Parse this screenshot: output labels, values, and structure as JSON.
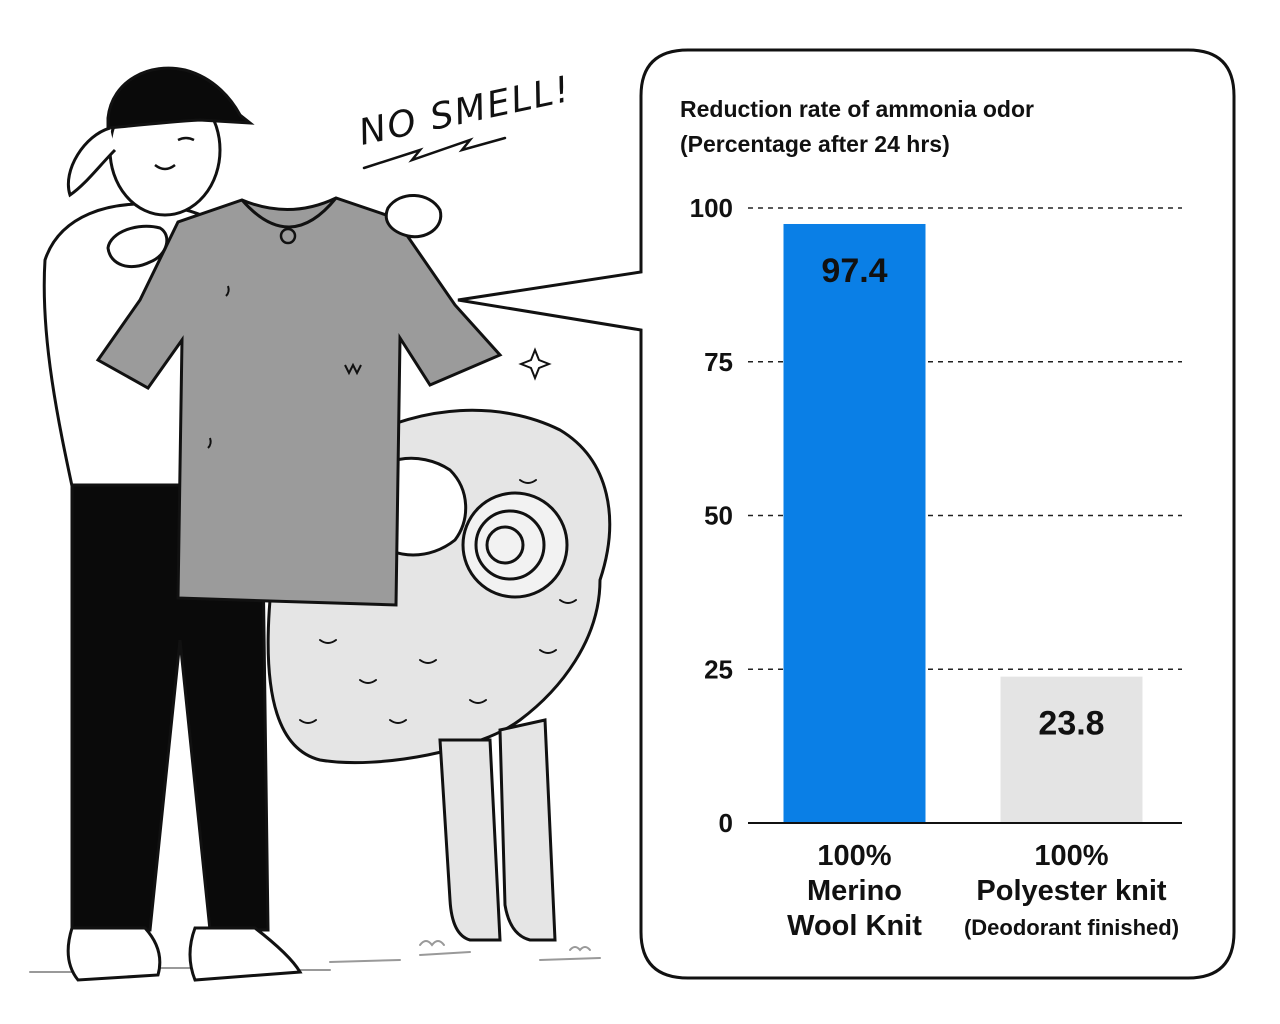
{
  "illustration": {
    "exclamation": "NO SMELL!"
  },
  "chart_data": {
    "type": "bar",
    "title_lines": [
      "Reduction rate of ammonia odor",
      "(Percentage after 24 hrs)"
    ],
    "categories": [
      {
        "lines": [
          "100%",
          "Merino",
          "Wool Knit"
        ],
        "note": ""
      },
      {
        "lines": [
          "100%",
          "Polyester knit"
        ],
        "note": "(Deodorant finished)"
      }
    ],
    "values": [
      97.4,
      23.8
    ],
    "value_labels": [
      "97.4",
      "23.8"
    ],
    "bar_colors": [
      "#0a7fe6",
      "#e4e4e4"
    ],
    "ylim": [
      0,
      100
    ],
    "yticks": [
      0,
      25,
      50,
      75,
      100
    ],
    "grid": true,
    "xlabel": "",
    "ylabel": ""
  }
}
